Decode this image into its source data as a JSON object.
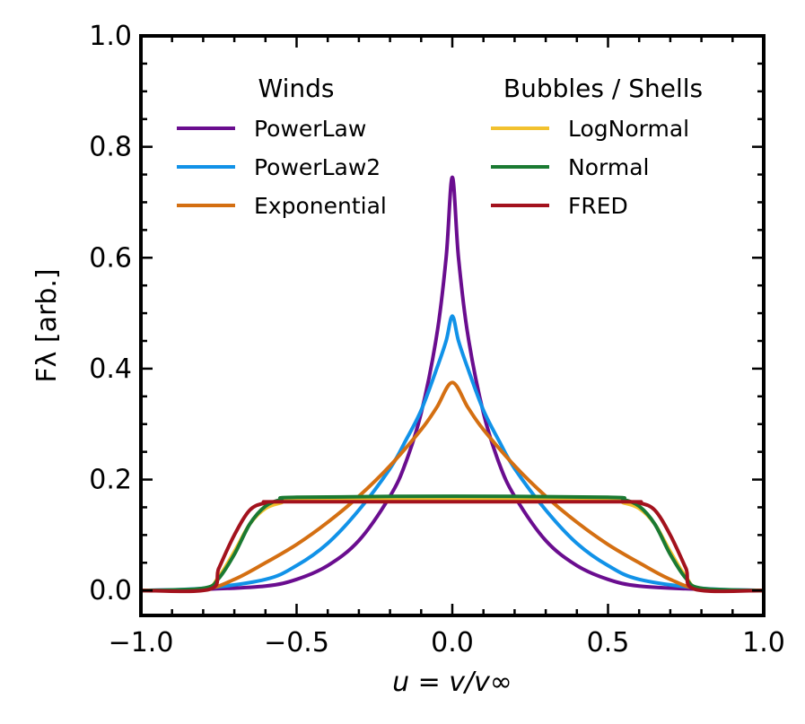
{
  "chart_data": {
    "type": "line",
    "xlabel": "u = v/v∞",
    "ylabel": "Fλ [arb.]",
    "xlim": [
      -1.0,
      1.0
    ],
    "ylim": [
      -0.045,
      1.0
    ],
    "xticks": [
      -1.0,
      -0.5,
      0.0,
      0.5,
      1.0
    ],
    "xtick_labels": [
      "−1.0",
      "−0.5",
      "0.0",
      "0.5",
      "1.0"
    ],
    "yticks": [
      0.0,
      0.2,
      0.4,
      0.6,
      0.8,
      1.0
    ],
    "ytick_labels": [
      "0.0",
      "0.2",
      "0.4",
      "0.6",
      "0.8",
      "1.0"
    ],
    "grid": false,
    "legend": {
      "placement": "top",
      "groups": [
        {
          "title": "Winds",
          "entries": [
            "PowerLaw",
            "PowerLaw2",
            "Exponential"
          ]
        },
        {
          "title": "Bubbles / Shells",
          "entries": [
            "LogNormal",
            "Normal",
            "FRED"
          ]
        }
      ]
    },
    "series": [
      {
        "name": "PowerLaw",
        "color": "#6a0d8f",
        "group": "Winds",
        "x": [
          -1.0,
          -0.8,
          -0.6,
          -0.5,
          -0.4,
          -0.3,
          -0.2,
          -0.15,
          -0.1,
          -0.05,
          -0.02,
          0.0,
          0.02,
          0.05,
          0.1,
          0.15,
          0.2,
          0.3,
          0.4,
          0.5,
          0.6,
          0.8,
          1.0
        ],
        "y": [
          0.0,
          0.002,
          0.008,
          0.02,
          0.045,
          0.09,
          0.17,
          0.23,
          0.32,
          0.46,
          0.6,
          0.745,
          0.6,
          0.46,
          0.32,
          0.23,
          0.17,
          0.09,
          0.045,
          0.02,
          0.008,
          0.002,
          0.0
        ]
      },
      {
        "name": "PowerLaw2",
        "color": "#1192e8",
        "group": "Winds",
        "x": [
          -1.0,
          -0.8,
          -0.6,
          -0.5,
          -0.4,
          -0.3,
          -0.2,
          -0.15,
          -0.1,
          -0.05,
          -0.02,
          0.0,
          0.02,
          0.05,
          0.1,
          0.15,
          0.2,
          0.3,
          0.4,
          0.5,
          0.6,
          0.8,
          1.0
        ],
        "y": [
          0.0,
          0.004,
          0.02,
          0.045,
          0.085,
          0.145,
          0.22,
          0.27,
          0.325,
          0.4,
          0.45,
          0.495,
          0.45,
          0.4,
          0.325,
          0.27,
          0.22,
          0.145,
          0.085,
          0.045,
          0.02,
          0.004,
          0.0
        ]
      },
      {
        "name": "Exponential",
        "color": "#d46f12",
        "group": "Winds",
        "x": [
          -1.0,
          -0.8,
          -0.7,
          -0.6,
          -0.5,
          -0.4,
          -0.3,
          -0.2,
          -0.1,
          -0.05,
          0.0,
          0.05,
          0.1,
          0.2,
          0.3,
          0.4,
          0.5,
          0.6,
          0.7,
          0.8,
          1.0
        ],
        "y": [
          0.0,
          0.002,
          0.02,
          0.05,
          0.083,
          0.123,
          0.17,
          0.225,
          0.29,
          0.33,
          0.375,
          0.33,
          0.29,
          0.225,
          0.17,
          0.123,
          0.083,
          0.05,
          0.02,
          0.002,
          0.0
        ]
      },
      {
        "name": "LogNormal",
        "color": "#f2c12e",
        "group": "Bubbles / Shells",
        "x": [
          -1.0,
          -0.8,
          -0.75,
          -0.7,
          -0.65,
          -0.6,
          -0.55,
          -0.5,
          0.0,
          0.5,
          0.55,
          0.6,
          0.65,
          0.7,
          0.75,
          0.8,
          1.0
        ],
        "y": [
          0.0,
          0.003,
          0.025,
          0.07,
          0.12,
          0.148,
          0.158,
          0.162,
          0.165,
          0.162,
          0.158,
          0.148,
          0.12,
          0.07,
          0.025,
          0.003,
          0.0
        ]
      },
      {
        "name": "Normal",
        "color": "#1a7a32",
        "group": "Bubbles / Shells",
        "x": [
          -1.0,
          -0.8,
          -0.75,
          -0.7,
          -0.65,
          -0.6,
          -0.55,
          -0.5,
          0.0,
          0.5,
          0.55,
          0.6,
          0.65,
          0.7,
          0.75,
          0.8,
          1.0
        ],
        "y": [
          0.0,
          0.004,
          0.022,
          0.065,
          0.12,
          0.152,
          0.164,
          0.168,
          0.17,
          0.168,
          0.164,
          0.152,
          0.12,
          0.065,
          0.022,
          0.004,
          0.0
        ]
      },
      {
        "name": "FRED",
        "color": "#a3121d",
        "group": "Bubbles / Shells",
        "x": [
          -1.0,
          -0.78,
          -0.75,
          -0.7,
          -0.65,
          -0.6,
          -0.55,
          0.0,
          0.55,
          0.6,
          0.65,
          0.7,
          0.75,
          0.78,
          1.0
        ],
        "y": [
          0.0,
          0.002,
          0.04,
          0.1,
          0.145,
          0.158,
          0.16,
          0.16,
          0.16,
          0.158,
          0.145,
          0.1,
          0.04,
          0.002,
          0.0
        ]
      }
    ]
  }
}
